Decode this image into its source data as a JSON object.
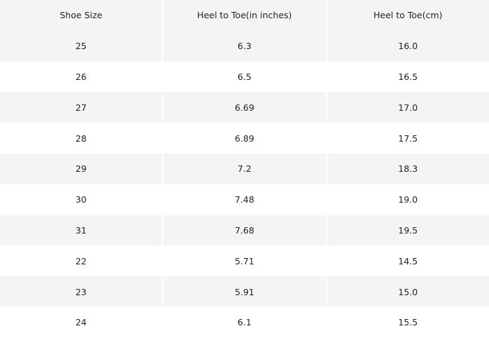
{
  "table": {
    "headers": [
      "Shoe Size",
      "Heel to Toe(in inches)",
      "Heel to Toe(cm)"
    ],
    "rows": [
      [
        "25",
        "6.3",
        "16.0"
      ],
      [
        "26",
        "6.5",
        "16.5"
      ],
      [
        "27",
        "6.69",
        "17.0"
      ],
      [
        "28",
        "6.89",
        "17.5"
      ],
      [
        "29",
        "7.2",
        "18.3"
      ],
      [
        "30",
        "7.48",
        "19.0"
      ],
      [
        "31",
        "7.68",
        "19.5"
      ],
      [
        "22",
        "5.71",
        "14.5"
      ],
      [
        "23",
        "5.91",
        "15.0"
      ],
      [
        "24",
        "6.1",
        "15.5"
      ]
    ]
  }
}
